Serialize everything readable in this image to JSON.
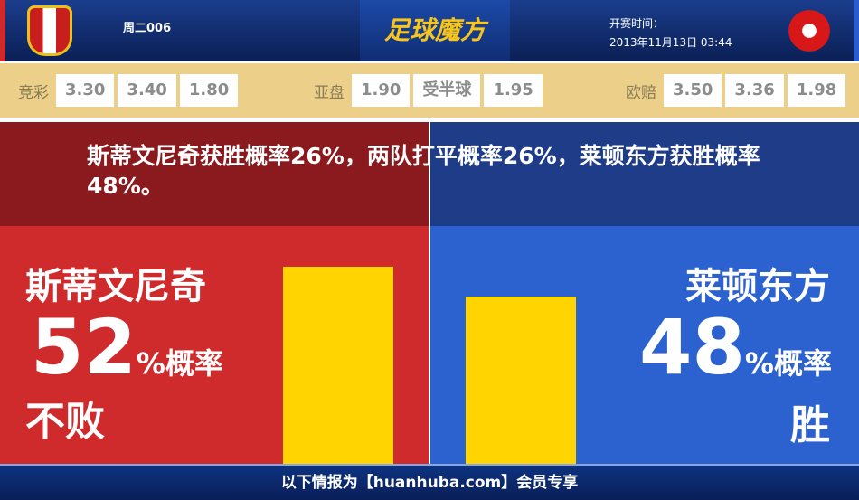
{
  "header": {
    "home_crest": "stevenage-crest",
    "away_crest": "leyton-orient-crest",
    "match_no": "周二006",
    "logo": "足球魔方",
    "kickoff_label": "开赛时间：",
    "kickoff_time": "2013年11月13日 03:44"
  },
  "odds": {
    "jingcai": {
      "label": "竞彩",
      "values": [
        "3.30",
        "3.40",
        "1.80"
      ]
    },
    "asian": {
      "label": "亚盘",
      "values": [
        "1.90",
        "受半球",
        "1.95"
      ]
    },
    "euro": {
      "label": "欧赔",
      "values": [
        "3.50",
        "3.36",
        "1.98"
      ]
    }
  },
  "summary": "斯蒂文尼奇获胜概率26%，两队打平概率26%，莱顿东方获胜概率48%。",
  "home": {
    "team": "斯蒂文尼奇",
    "percent": "52",
    "pct_suffix": "%概率",
    "result": "不败",
    "bar_value": 52,
    "color": "#cf2b2c"
  },
  "away": {
    "team": "莱顿东方",
    "percent": "48",
    "pct_suffix": "%概率",
    "result": "胜",
    "bar_value": 48,
    "color": "#2c61d0"
  },
  "bar_color": "#ffd400",
  "footer": "以下情报为【huanhuba.com】会员专享"
}
